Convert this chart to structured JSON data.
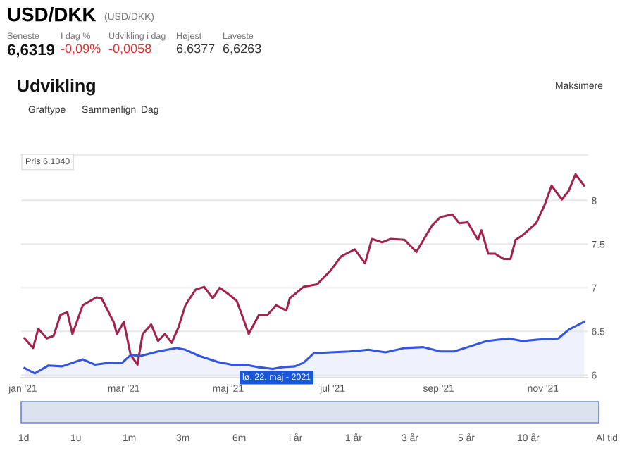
{
  "chart_data": {
    "type": "line",
    "title": "USD/DKK",
    "subtitle": "(USD/DKK)",
    "series": [
      {
        "type": "line",
        "color": "#a3234f",
        "x": [
          "2021-01-02",
          "2021-01-07",
          "2021-01-10",
          "2021-01-15",
          "2021-01-19",
          "2021-01-23",
          "2021-01-27",
          "2021-01-30",
          "2021-02-05",
          "2021-02-13",
          "2021-02-16",
          "2021-02-23",
          "2021-02-25",
          "2021-03-01",
          "2021-03-05",
          "2021-03-09",
          "2021-03-12",
          "2021-03-17",
          "2021-03-21",
          "2021-03-25",
          "2021-03-29",
          "2021-04-02",
          "2021-04-06",
          "2021-04-12",
          "2021-04-17",
          "2021-04-22",
          "2021-04-26",
          "2021-05-01",
          "2021-05-06",
          "2021-05-09",
          "2021-05-13",
          "2021-05-19",
          "2021-05-24",
          "2021-05-29",
          "2021-06-04",
          "2021-06-06",
          "2021-06-14",
          "2021-06-22",
          "2021-06-30",
          "2021-07-06",
          "2021-07-14",
          "2021-07-20",
          "2021-07-24",
          "2021-07-30",
          "2021-08-04",
          "2021-08-12",
          "2021-08-19",
          "2021-08-28",
          "2021-09-02",
          "2021-09-09",
          "2021-09-13",
          "2021-09-18",
          "2021-09-24",
          "2021-09-26",
          "2021-09-30",
          "2021-10-04",
          "2021-10-09",
          "2021-10-13",
          "2021-10-16",
          "2021-10-20",
          "2021-10-28",
          "2021-11-02",
          "2021-11-06",
          "2021-11-12",
          "2021-11-16",
          "2021-11-20",
          "2021-11-25"
        ],
        "values": [
          6.42,
          6.31,
          6.53,
          6.42,
          6.45,
          6.69,
          6.72,
          6.47,
          6.8,
          6.89,
          6.88,
          6.61,
          6.47,
          6.61,
          6.23,
          6.12,
          6.47,
          6.58,
          6.39,
          6.47,
          6.37,
          6.55,
          6.8,
          6.98,
          7.01,
          6.88,
          7.0,
          6.93,
          6.85,
          6.69,
          6.47,
          6.69,
          6.69,
          6.8,
          6.74,
          6.88,
          7.01,
          7.04,
          7.2,
          7.36,
          7.44,
          7.28,
          7.56,
          7.52,
          7.56,
          7.55,
          7.41,
          7.71,
          7.81,
          7.84,
          7.74,
          7.75,
          7.55,
          7.66,
          7.39,
          7.39,
          7.33,
          7.33,
          7.55,
          7.6,
          7.74,
          7.95,
          8.17,
          8.01,
          8.11,
          8.3,
          8.17
        ]
      },
      {
        "type": "area",
        "color": "#3355e0",
        "x": [
          "2021-01-02",
          "2021-01-08",
          "2021-01-16",
          "2021-01-24",
          "2021-02-05",
          "2021-02-12",
          "2021-02-20",
          "2021-02-28",
          "2021-03-05",
          "2021-03-11",
          "2021-03-21",
          "2021-04-01",
          "2021-04-06",
          "2021-04-14",
          "2021-04-25",
          "2021-05-03",
          "2021-05-11",
          "2021-05-19",
          "2021-05-27",
          "2021-06-01",
          "2021-06-09",
          "2021-06-14",
          "2021-06-20",
          "2021-06-30",
          "2021-07-11",
          "2021-07-22",
          "2021-08-01",
          "2021-08-12",
          "2021-08-23",
          "2021-09-02",
          "2021-09-10",
          "2021-09-18",
          "2021-09-29",
          "2021-10-12",
          "2021-10-20",
          "2021-10-31",
          "2021-11-10",
          "2021-11-16",
          "2021-11-25"
        ],
        "values": [
          6.08,
          6.02,
          6.11,
          6.1,
          6.18,
          6.12,
          6.14,
          6.14,
          6.23,
          6.22,
          6.27,
          6.31,
          6.29,
          6.22,
          6.15,
          6.12,
          6.12,
          6.09,
          6.07,
          6.09,
          6.1,
          6.14,
          6.25,
          6.26,
          6.27,
          6.29,
          6.26,
          6.31,
          6.32,
          6.27,
          6.27,
          6.32,
          6.39,
          6.42,
          6.39,
          6.41,
          6.42,
          6.52,
          6.61
        ]
      }
    ],
    "xlim": [
      "2020-12-31",
      "2021-11-27"
    ],
    "xticks": [
      {
        "value": "2021-01-01",
        "label": "jan '21"
      },
      {
        "value": "2021-03-01",
        "label": "mar '21"
      },
      {
        "value": "2021-05-01",
        "label": "maj '21"
      },
      {
        "value": "2021-07-01",
        "label": "jul '21"
      },
      {
        "value": "2021-09-01",
        "label": "sep '21"
      },
      {
        "value": "2021-11-01",
        "label": "nov '21"
      }
    ],
    "ylim": [
      5.97,
      8.52
    ],
    "yticks": [
      6,
      6.5,
      7,
      7.5,
      8
    ],
    "grid": "y",
    "legend": false,
    "annotations": [
      "Seneste",
      "6,6319",
      "I dag %",
      "-0,09%",
      "Udvikling i dag",
      "-0,0058",
      "Højest",
      "6,6377",
      "Laveste",
      "6,6263",
      "Udvikling",
      "Maksimere",
      "Graftype",
      "Sammenlign",
      "Dag",
      "Pris 6.1040",
      "lø. 22. maj - 2021",
      "1d",
      "1u",
      "1m",
      "3m",
      "6m",
      "i år",
      "1 år",
      "3 år",
      "5 år",
      "10 år",
      "Al tid"
    ]
  }
}
